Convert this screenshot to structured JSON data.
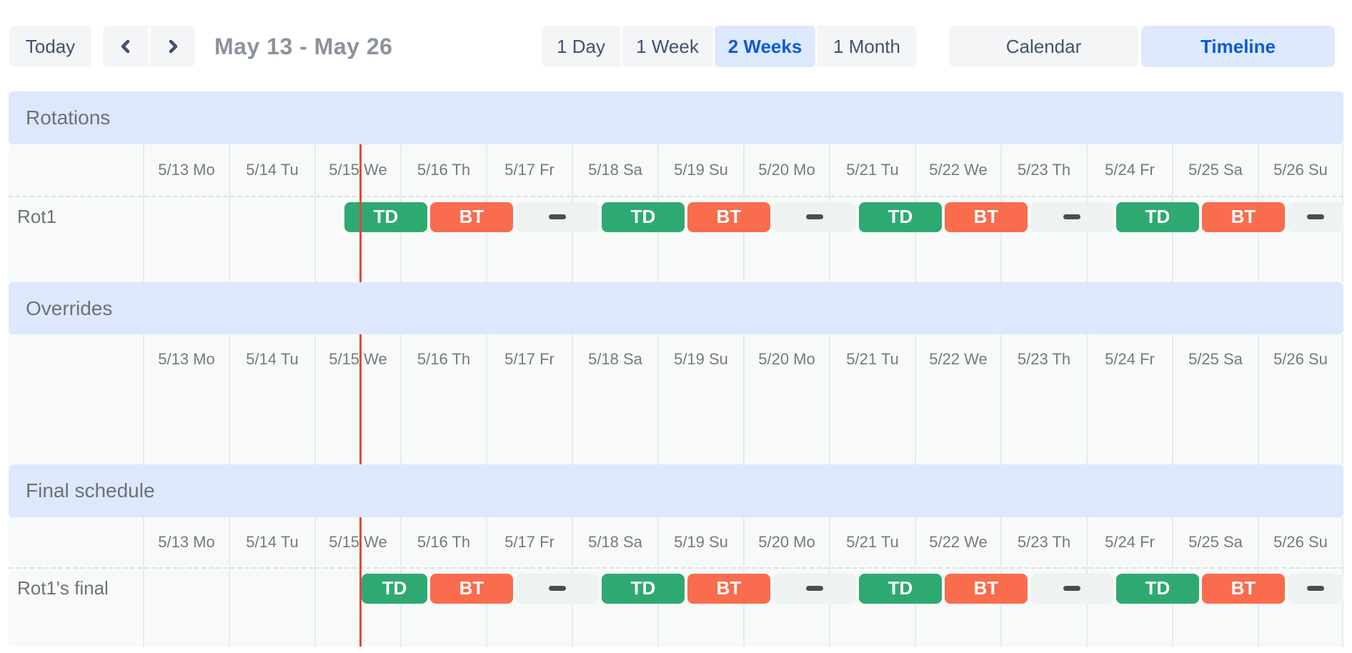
{
  "toolbar": {
    "today_label": "Today",
    "prev_icon": "chevron-left-icon",
    "next_icon": "chevron-right-icon",
    "range_title": "May 13 - May 26",
    "views": [
      {
        "label": "1 Day",
        "active": false
      },
      {
        "label": "1 Week",
        "active": false
      },
      {
        "label": "2 Weeks",
        "active": true
      },
      {
        "label": "1 Month",
        "active": false
      }
    ],
    "modes": [
      {
        "label": "Calendar",
        "active": false
      },
      {
        "label": "Timeline",
        "active": true
      }
    ]
  },
  "colors": {
    "selected_bg": "#dde9fc",
    "selected_text": "#0b5cd7",
    "button_bg": "#f4f5f6",
    "button_text": "#42526e",
    "section_band_bg": "#dde8fc",
    "grid_bg": "#f8faf9",
    "gridline": "#e4ecea",
    "current_time_line": "#dc4a3d",
    "td_color": "#2fa972",
    "bt_color": "#f96c4e",
    "gap_bg": "#eef3f1"
  },
  "dates": [
    "5/13 Mo",
    "5/14 Tu",
    "5/15 We",
    "5/16 Th",
    "5/17 Fr",
    "5/18 Sa",
    "5/19 Su",
    "5/20 Mo",
    "5/21 Tu",
    "5/22 We",
    "5/23 Th",
    "5/24 Fr",
    "5/25 Sa",
    "5/26 Su"
  ],
  "legend": {
    "td": {
      "label": "TD",
      "color": "#2fa972"
    },
    "bt": {
      "label": "BT",
      "color": "#f96c4e"
    },
    "gap": {
      "label": "",
      "color": "#eef3f1"
    }
  },
  "current_time_day_offset": 2.533,
  "sections": [
    {
      "title": "Rotations",
      "rows": [
        {
          "label": "Rot1",
          "blocks": [
            {
              "type": "td",
              "start": 2.3333,
              "end": 3.3333
            },
            {
              "type": "bt",
              "start": 3.3333,
              "end": 4.3333
            },
            {
              "type": "gap",
              "start": 4.3333,
              "end": 5.3333
            },
            {
              "type": "td",
              "start": 5.3333,
              "end": 6.3333
            },
            {
              "type": "bt",
              "start": 6.3333,
              "end": 7.3333
            },
            {
              "type": "gap",
              "start": 7.3333,
              "end": 8.3333
            },
            {
              "type": "td",
              "start": 8.3333,
              "end": 9.3333
            },
            {
              "type": "bt",
              "start": 9.3333,
              "end": 10.3333
            },
            {
              "type": "gap",
              "start": 10.3333,
              "end": 11.3333
            },
            {
              "type": "td",
              "start": 11.3333,
              "end": 12.3333
            },
            {
              "type": "bt",
              "start": 12.3333,
              "end": 13.3333
            },
            {
              "type": "gap",
              "start": 13.3333,
              "end": 14
            }
          ]
        }
      ]
    },
    {
      "title": "Overrides",
      "rows": []
    },
    {
      "title": "Final schedule",
      "rows": [
        {
          "label": "Rot1's final",
          "blocks": [
            {
              "type": "td",
              "start": 2.533,
              "end": 3.3333
            },
            {
              "type": "bt",
              "start": 3.3333,
              "end": 4.3333
            },
            {
              "type": "gap",
              "start": 4.3333,
              "end": 5.3333
            },
            {
              "type": "td",
              "start": 5.3333,
              "end": 6.3333
            },
            {
              "type": "bt",
              "start": 6.3333,
              "end": 7.3333
            },
            {
              "type": "gap",
              "start": 7.3333,
              "end": 8.3333
            },
            {
              "type": "td",
              "start": 8.3333,
              "end": 9.3333
            },
            {
              "type": "bt",
              "start": 9.3333,
              "end": 10.3333
            },
            {
              "type": "gap",
              "start": 10.3333,
              "end": 11.3333
            },
            {
              "type": "td",
              "start": 11.3333,
              "end": 12.3333
            },
            {
              "type": "bt",
              "start": 12.3333,
              "end": 13.3333
            },
            {
              "type": "gap",
              "start": 13.3333,
              "end": 14
            }
          ]
        }
      ]
    }
  ]
}
